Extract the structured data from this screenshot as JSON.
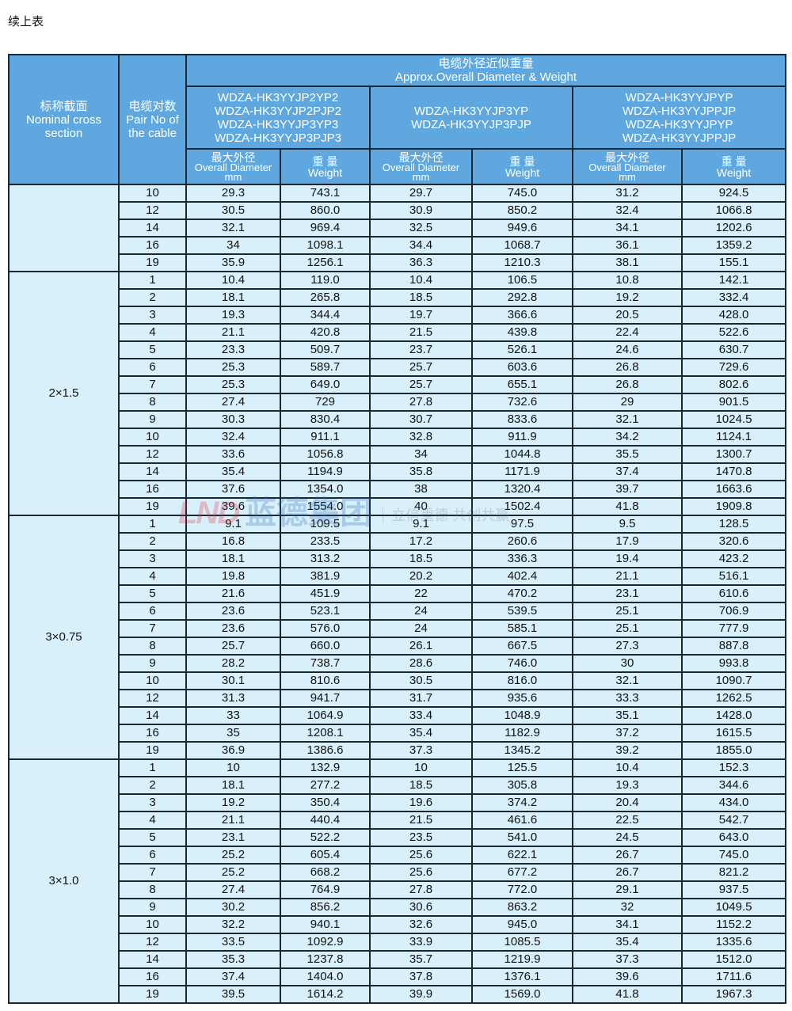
{
  "caption": "续上表",
  "header": {
    "section_cn": "标称截面",
    "section_en": "Nominal cross section",
    "pairs_cn": "电缆对数",
    "pairs_en": "Pair No of the cable",
    "group_cn": "电缆外径近似重量",
    "group_en": "Approx.Overall Diameter & Weight",
    "models": [
      [
        "WDZA-HK3YYJP2YP2",
        "WDZA-HK3YYJP2PJP2",
        "WDZA-HK3YYJP3YP3",
        "WDZA-HK3YYJP3PJP3"
      ],
      [
        "WDZA-HK3YYJP3YP",
        "WDZA-HK3YYJP3PJP"
      ],
      [
        "WDZA-HK3YYJPYP",
        "WDZA-HK3YYJPPJP",
        "WDZA-HK3YYJPYP",
        "WDZA-HK3YYJPPJP"
      ]
    ],
    "diameter_cn": "最大外径",
    "diameter_en": "Overall Diameter",
    "diameter_unit": "mm",
    "weight_cn": "重 量",
    "weight_en": "Weight"
  },
  "groups": [
    {
      "section": "",
      "rows": [
        [
          "10",
          "29.3",
          "743.1",
          "29.7",
          "745.0",
          "31.2",
          "924.5"
        ],
        [
          "12",
          "30.5",
          "860.0",
          "30.9",
          "850.2",
          "32.4",
          "1066.8"
        ],
        [
          "14",
          "32.1",
          "969.4",
          "32.5",
          "949.6",
          "34.1",
          "1202.6"
        ],
        [
          "16",
          "34",
          "1098.1",
          "34.4",
          "1068.7",
          "36.1",
          "1359.2"
        ],
        [
          "19",
          "35.9",
          "1256.1",
          "36.3",
          "1210.3",
          "38.1",
          "155.1"
        ]
      ]
    },
    {
      "section": "2×1.5",
      "rows": [
        [
          "1",
          "10.4",
          "119.0",
          "10.4",
          "106.5",
          "10.8",
          "142.1"
        ],
        [
          "2",
          "18.1",
          "265.8",
          "18.5",
          "292.8",
          "19.2",
          "332.4"
        ],
        [
          "3",
          "19.3",
          "344.4",
          "19.7",
          "366.6",
          "20.5",
          "428.0"
        ],
        [
          "4",
          "21.1",
          "420.8",
          "21.5",
          "439.8",
          "22.4",
          "522.6"
        ],
        [
          "5",
          "23.3",
          "509.7",
          "23.7",
          "526.1",
          "24.6",
          "630.7"
        ],
        [
          "6",
          "25.3",
          "589.7",
          "25.7",
          "603.6",
          "26.8",
          "729.6"
        ],
        [
          "7",
          "25.3",
          "649.0",
          "25.7",
          "655.1",
          "26.8",
          "802.6"
        ],
        [
          "8",
          "27.4",
          "729",
          "27.8",
          "732.6",
          "29",
          "901.5"
        ],
        [
          "9",
          "30.3",
          "830.4",
          "30.7",
          "833.6",
          "32.1",
          "1024.5"
        ],
        [
          "10",
          "32.4",
          "911.1",
          "32.8",
          "911.9",
          "34.2",
          "1124.1"
        ],
        [
          "12",
          "33.6",
          "1056.8",
          "34",
          "1044.8",
          "35.5",
          "1300.7"
        ],
        [
          "14",
          "35.4",
          "1194.9",
          "35.8",
          "1171.9",
          "37.4",
          "1470.8"
        ],
        [
          "16",
          "37.6",
          "1354.0",
          "38",
          "1320.4",
          "39.7",
          "1663.6"
        ],
        [
          "19",
          "39.6",
          "1554.0",
          "40",
          "1502.4",
          "41.8",
          "1909.8"
        ]
      ]
    },
    {
      "section": "3×0.75",
      "rows": [
        [
          "1",
          "9.1",
          "109.5",
          "9.1",
          "97.5",
          "9.5",
          "128.5"
        ],
        [
          "2",
          "16.8",
          "233.5",
          "17.2",
          "260.6",
          "17.9",
          "320.6"
        ],
        [
          "3",
          "18.1",
          "313.2",
          "18.5",
          "336.3",
          "19.4",
          "423.2"
        ],
        [
          "4",
          "19.8",
          "381.9",
          "20.2",
          "402.4",
          "21.1",
          "516.1"
        ],
        [
          "5",
          "21.6",
          "451.9",
          "22",
          "470.2",
          "23.1",
          "610.6"
        ],
        [
          "6",
          "23.6",
          "523.1",
          "24",
          "539.5",
          "25.1",
          "706.9"
        ],
        [
          "7",
          "23.6",
          "576.0",
          "24",
          "585.1",
          "25.1",
          "777.9"
        ],
        [
          "8",
          "25.7",
          "660.0",
          "26.1",
          "667.5",
          "27.3",
          "887.8"
        ],
        [
          "9",
          "28.2",
          "738.7",
          "28.6",
          "746.0",
          "30",
          "993.8"
        ],
        [
          "10",
          "30.1",
          "810.6",
          "30.5",
          "816.0",
          "32.1",
          "1090.7"
        ],
        [
          "12",
          "31.3",
          "941.7",
          "31.7",
          "935.6",
          "33.3",
          "1262.5"
        ],
        [
          "14",
          "33",
          "1064.9",
          "33.4",
          "1048.9",
          "35.1",
          "1428.0"
        ],
        [
          "16",
          "35",
          "1208.1",
          "35.4",
          "1182.9",
          "37.2",
          "1615.5"
        ],
        [
          "19",
          "36.9",
          "1386.6",
          "37.3",
          "1345.2",
          "39.2",
          "1855.0"
        ]
      ]
    },
    {
      "section": "3×1.0",
      "rows": [
        [
          "1",
          "10",
          "132.9",
          "10",
          "125.5",
          "10.4",
          "152.3"
        ],
        [
          "2",
          "18.1",
          "277.2",
          "18.5",
          "305.8",
          "19.3",
          "344.6"
        ],
        [
          "3",
          "19.2",
          "350.4",
          "19.6",
          "374.2",
          "20.4",
          "434.0"
        ],
        [
          "4",
          "21.1",
          "440.4",
          "21.5",
          "461.6",
          "22.5",
          "542.7"
        ],
        [
          "5",
          "23.1",
          "522.2",
          "23.5",
          "541.0",
          "24.5",
          "643.0"
        ],
        [
          "6",
          "25.2",
          "605.4",
          "25.6",
          "622.1",
          "26.7",
          "745.0"
        ],
        [
          "7",
          "25.2",
          "668.2",
          "25.6",
          "677.2",
          "26.7",
          "821.2"
        ],
        [
          "8",
          "27.4",
          "764.9",
          "27.8",
          "772.0",
          "29.1",
          "937.5"
        ],
        [
          "9",
          "30.2",
          "856.2",
          "30.6",
          "863.2",
          "32",
          "1049.5"
        ],
        [
          "10",
          "32.2",
          "940.1",
          "32.6",
          "945.0",
          "34.1",
          "1152.2"
        ],
        [
          "12",
          "33.5",
          "1092.9",
          "33.9",
          "1085.5",
          "35.4",
          "1335.6"
        ],
        [
          "14",
          "35.3",
          "1237.8",
          "35.7",
          "1219.9",
          "37.3",
          "1512.0"
        ],
        [
          "16",
          "37.4",
          "1404.0",
          "37.8",
          "1376.1",
          "39.6",
          "1711.6"
        ],
        [
          "19",
          "39.5",
          "1614.2",
          "39.9",
          "1569.0",
          "41.8",
          "1967.3"
        ]
      ]
    }
  ],
  "watermark": {
    "logo": "LND",
    "name": "蓝德集团",
    "slogan": "立信重德 共创共赢"
  },
  "colors": {
    "header_bg": "#5fa8df",
    "cell_bg": "#d8f0fb",
    "border": "#1b2633"
  }
}
